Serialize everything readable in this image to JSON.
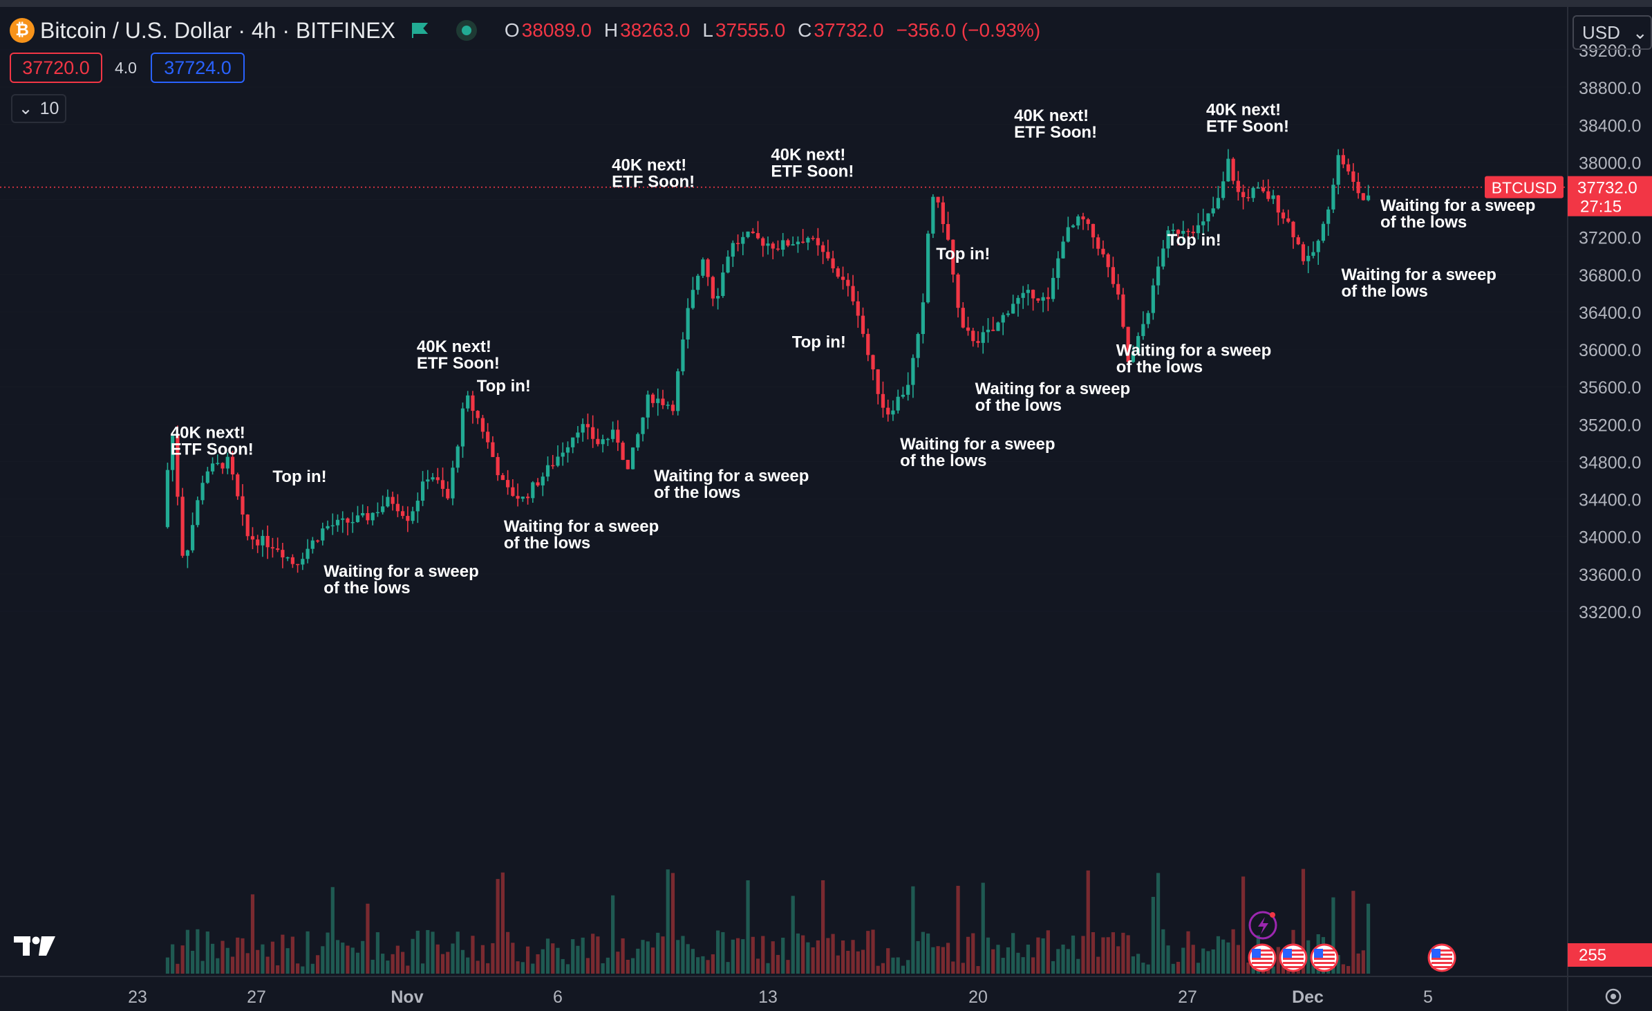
{
  "header": {
    "logo_glyph": "₿",
    "symbol_title": "Bitcoin / U.S. Dollar · 4h · BITFINEX",
    "ohlc": [
      {
        "key": "O",
        "value": "38089.0"
      },
      {
        "key": "H",
        "value": "38263.0"
      },
      {
        "key": "L",
        "value": "37555.0"
      },
      {
        "key": "C",
        "value": "37732.0"
      }
    ],
    "change": "−356.0 (−0.93%)"
  },
  "trade": {
    "bid": "37720.0",
    "spread": "4.0",
    "ask": "37724.0"
  },
  "indicators": {
    "collapse_glyph": "⌄",
    "count": "10"
  },
  "currency": {
    "selected": "USD",
    "arrow": "⌄"
  },
  "colors": {
    "background": "#131722",
    "up": "#22ab94",
    "down": "#f23645",
    "up_volume": "#1f5a52",
    "down_volume": "#7a2a30",
    "axis_text": "#b2b5be",
    "annotation_text": "#ffffff"
  },
  "chart_data": {
    "type": "candlestick",
    "title": "Bitcoin / U.S. Dollar · 4h · BITFINEX",
    "y_axis": {
      "ticks": [
        "39200.0",
        "38800.0",
        "38400.0",
        "38000.0",
        "37600.0",
        "37200.0",
        "36800.0",
        "36400.0",
        "36000.0",
        "35600.0",
        "35200.0",
        "34800.0",
        "34400.0",
        "34000.0",
        "33600.0",
        "33200.0"
      ],
      "range": [
        33000,
        39450
      ]
    },
    "x_axis": {
      "ticks": [
        "23",
        "27",
        "Nov",
        "6",
        "13",
        "20",
        "27",
        "Dec",
        "5"
      ]
    },
    "last_price": {
      "symbol": "BTCUSD",
      "value": "37732.0",
      "countdown": "27:15",
      "price": 37732
    },
    "volume_label": "255",
    "path_points": [
      {
        "day": 24.0,
        "price": 34100
      },
      {
        "day": 24.3,
        "price": 35200
      },
      {
        "day": 24.7,
        "price": 33700
      },
      {
        "day": 25.4,
        "price": 34700
      },
      {
        "day": 26.2,
        "price": 34800
      },
      {
        "day": 26.8,
        "price": 34000
      },
      {
        "day": 27.8,
        "price": 33900
      },
      {
        "day": 28.4,
        "price": 33700
      },
      {
        "day": 29.4,
        "price": 34100
      },
      {
        "day": 30.8,
        "price": 34200
      },
      {
        "day": 31.6,
        "price": 34400
      },
      {
        "day": 32.2,
        "price": 34200
      },
      {
        "day": 32.9,
        "price": 34700
      },
      {
        "day": 33.5,
        "price": 34400
      },
      {
        "day": 34.1,
        "price": 35500
      },
      {
        "day": 34.6,
        "price": 35200
      },
      {
        "day": 35.4,
        "price": 34500
      },
      {
        "day": 36.0,
        "price": 34400
      },
      {
        "day": 36.8,
        "price": 34700
      },
      {
        "day": 37.5,
        "price": 35000
      },
      {
        "day": 37.9,
        "price": 35200
      },
      {
        "day": 38.5,
        "price": 35000
      },
      {
        "day": 39.1,
        "price": 35100
      },
      {
        "day": 39.5,
        "price": 34700
      },
      {
        "day": 40.2,
        "price": 35500
      },
      {
        "day": 41.0,
        "price": 35400
      },
      {
        "day": 41.5,
        "price": 36400
      },
      {
        "day": 42.0,
        "price": 37000
      },
      {
        "day": 42.4,
        "price": 36500
      },
      {
        "day": 42.9,
        "price": 37100
      },
      {
        "day": 43.5,
        "price": 37200
      },
      {
        "day": 44.5,
        "price": 37100
      },
      {
        "day": 45.5,
        "price": 37200
      },
      {
        "day": 46.3,
        "price": 36900
      },
      {
        "day": 47.1,
        "price": 36500
      },
      {
        "day": 47.6,
        "price": 35800
      },
      {
        "day": 48.1,
        "price": 35300
      },
      {
        "day": 48.8,
        "price": 35600
      },
      {
        "day": 49.3,
        "price": 36300
      },
      {
        "day": 49.6,
        "price": 37700
      },
      {
        "day": 50.1,
        "price": 37300
      },
      {
        "day": 50.6,
        "price": 36200
      },
      {
        "day": 51.1,
        "price": 36100
      },
      {
        "day": 51.7,
        "price": 36200
      },
      {
        "day": 52.3,
        "price": 36500
      },
      {
        "day": 53.0,
        "price": 36600
      },
      {
        "day": 53.5,
        "price": 36500
      },
      {
        "day": 54.0,
        "price": 37200
      },
      {
        "day": 54.6,
        "price": 37400
      },
      {
        "day": 55.2,
        "price": 37100
      },
      {
        "day": 55.8,
        "price": 36600
      },
      {
        "day": 56.2,
        "price": 35800
      },
      {
        "day": 56.9,
        "price": 36500
      },
      {
        "day": 57.4,
        "price": 37200
      },
      {
        "day": 58.0,
        "price": 37300
      },
      {
        "day": 58.6,
        "price": 37300
      },
      {
        "day": 59.2,
        "price": 37600
      },
      {
        "day": 59.5,
        "price": 38000
      },
      {
        "day": 59.9,
        "price": 37600
      },
      {
        "day": 60.4,
        "price": 37700
      },
      {
        "day": 61.0,
        "price": 37600
      },
      {
        "day": 61.6,
        "price": 37300
      },
      {
        "day": 62.1,
        "price": 36900
      },
      {
        "day": 62.6,
        "price": 37200
      },
      {
        "day": 63.2,
        "price": 38100
      },
      {
        "day": 63.6,
        "price": 37800
      },
      {
        "day": 64.0,
        "price": 37600
      }
    ],
    "annotations": [
      {
        "text": "40K next!\nETF Soon!",
        "day": 24.1,
        "price": 35050
      },
      {
        "text": "Top in!",
        "day": 27.5,
        "price": 34580
      },
      {
        "text": "Waiting for a sweep\nof the lows",
        "day": 29.2,
        "price": 33570
      },
      {
        "text": "40K next!\nETF Soon!",
        "day": 32.3,
        "price": 35970
      },
      {
        "text": "Top in!",
        "day": 34.3,
        "price": 35550
      },
      {
        "text": "Waiting for a sweep\nof the lows",
        "day": 35.2,
        "price": 34050
      },
      {
        "text": "Waiting for a sweep\nof the lows",
        "day": 40.2,
        "price": 34590
      },
      {
        "text": "40K next!\nETF Soon!",
        "day": 38.8,
        "price": 37910
      },
      {
        "text": "Top in!",
        "day": 44.8,
        "price": 36020
      },
      {
        "text": "40K next!\nETF Soon!",
        "day": 44.1,
        "price": 38020
      },
      {
        "text": "Waiting for a sweep\nof the lows",
        "day": 48.4,
        "price": 34930
      },
      {
        "text": "Top in!",
        "day": 49.6,
        "price": 36960
      },
      {
        "text": "Waiting for a sweep\nof the lows",
        "day": 50.9,
        "price": 35520
      },
      {
        "text": "40K next!\nETF Soon!",
        "day": 52.2,
        "price": 38440
      },
      {
        "text": "Waiting for a sweep\nof the lows",
        "day": 55.6,
        "price": 35930
      },
      {
        "text": "Top in!",
        "day": 57.3,
        "price": 37110
      },
      {
        "text": "40K next!\nETF Soon!",
        "day": 58.6,
        "price": 38500
      },
      {
        "text": "Waiting for a sweep\nof the lows",
        "day": 63.1,
        "price": 36740
      },
      {
        "text": "Waiting for a sweep\nof the lows",
        "day": 64.4,
        "price": 37480
      }
    ]
  }
}
